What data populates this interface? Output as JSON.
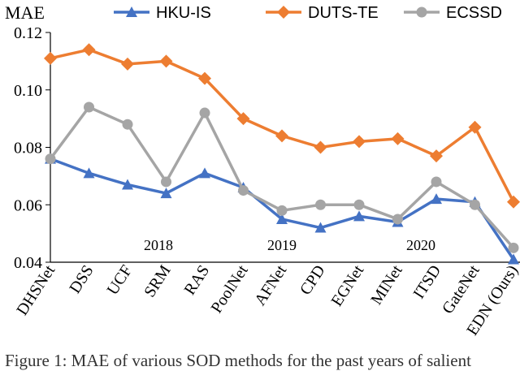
{
  "chart_data": {
    "type": "line",
    "ylabel": "MAE",
    "ylim": [
      0.04,
      0.12
    ],
    "yticks": [
      0.04,
      0.06,
      0.08,
      0.1,
      0.12
    ],
    "ytick_labels": [
      "0.04",
      "0.06",
      "0.08",
      "0.10",
      "0.12"
    ],
    "categories": [
      "DHSNet",
      "DSS",
      "UCF",
      "SRM",
      "RAS",
      "PoolNet",
      "AFNet",
      "CPD",
      "EGNet",
      "MINet",
      "ITSD",
      "GateNet",
      "EDN (Ours)"
    ],
    "year_annotations": [
      {
        "label": "2018",
        "x_index": 2.8
      },
      {
        "label": "2019",
        "x_index": 6.0
      },
      {
        "label": "2020",
        "x_index": 9.6
      }
    ],
    "legend_position": "top",
    "series": [
      {
        "name": "HKU-IS",
        "color": "#4472C4",
        "marker": "triangle",
        "values": [
          0.076,
          0.071,
          0.067,
          0.064,
          0.071,
          0.066,
          0.055,
          0.052,
          0.056,
          0.054,
          0.062,
          0.061,
          0.041
        ]
      },
      {
        "name": "DUTS-TE",
        "color": "#ED7D31",
        "marker": "diamond",
        "values": [
          0.111,
          0.114,
          0.109,
          0.11,
          0.104,
          0.09,
          0.084,
          0.08,
          0.082,
          0.083,
          0.077,
          0.087,
          0.061
        ]
      },
      {
        "name": "ECSSD",
        "color": "#A5A5A5",
        "marker": "circle",
        "values": [
          0.076,
          0.094,
          0.088,
          0.068,
          0.092,
          0.065,
          0.058,
          0.06,
          0.06,
          0.055,
          0.068,
          0.06,
          0.045
        ]
      }
    ]
  },
  "caption": "Figure 1: MAE of various SOD methods for the past years of salient"
}
